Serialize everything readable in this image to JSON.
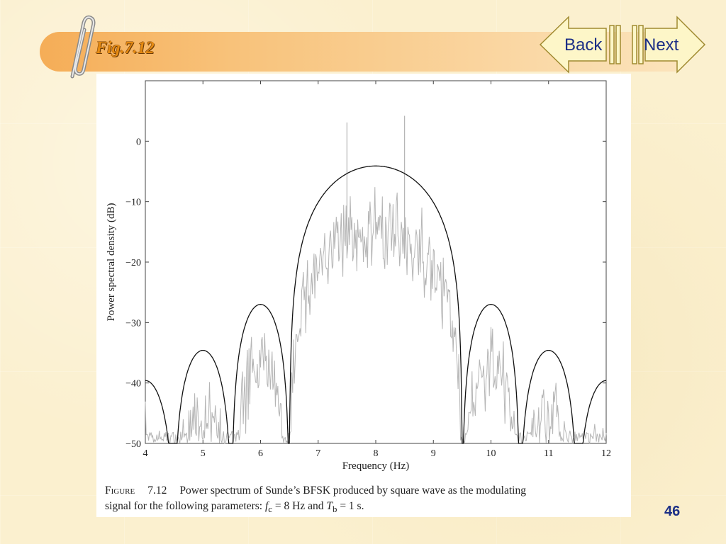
{
  "slide": {
    "title": "Fig.7.12",
    "page_number": "46",
    "back_label": "Back",
    "next_label": "Next"
  },
  "caption": {
    "label": "Figure",
    "number": "7.12",
    "line1": "Power spectrum of Sunde’s BFSK produced by square wave as the modulating",
    "line2_prefix": "signal for the following parameters: ",
    "fc_sym": "f",
    "fc_sub": "c",
    "fc_rest": " = 8 Hz and ",
    "tb_sym": "T",
    "tb_sub": "b",
    "tb_rest": " = 1 s."
  },
  "colors": {
    "theoretical": "#111111",
    "measured": "#b5b5b5",
    "accent": "#e58a12",
    "nav_fill": "#fdf6c8",
    "text_blue": "#1c2f86"
  },
  "chart_data": {
    "type": "line",
    "xlabel": "Frequency (Hz)",
    "ylabel": "Power spectral density (dB)",
    "xlim": [
      4,
      12
    ],
    "ylim": [
      -50,
      10
    ],
    "xticks": [
      4,
      5,
      6,
      7,
      8,
      9,
      10,
      11,
      12
    ],
    "yticks": [
      0,
      -10,
      -20,
      -30,
      -40,
      -50
    ],
    "series": [
      {
        "kind": "theoretical envelope",
        "style": "solid black",
        "lobes": [
          {
            "from": 3.5,
            "to": 4.5,
            "peak_x": 4.0,
            "peak_db": -39.6
          },
          {
            "from": 4.5,
            "to": 5.5,
            "peak_x": 5.0,
            "peak_db": -34.6
          },
          {
            "from": 5.5,
            "to": 6.5,
            "peak_x": 6.0,
            "peak_db": -27.0
          },
          {
            "from": 6.5,
            "to": 9.5,
            "peak_x": 8.0,
            "peak_db": -4.1
          },
          {
            "from": 9.5,
            "to": 10.5,
            "peak_x": 10.0,
            "peak_db": -27.0
          },
          {
            "from": 10.5,
            "to": 11.5,
            "peak_x": 11.0,
            "peak_db": -34.6
          },
          {
            "from": 11.5,
            "to": 12.5,
            "peak_x": 12.0,
            "peak_db": -39.6
          }
        ]
      },
      {
        "kind": "simulated spectrum",
        "style": "thin light gray",
        "offset_below_envelope_db": 6,
        "spikes": [
          {
            "x": 7.5,
            "y": 3.1
          },
          {
            "x": 8.5,
            "y": 4.2
          }
        ]
      }
    ]
  }
}
